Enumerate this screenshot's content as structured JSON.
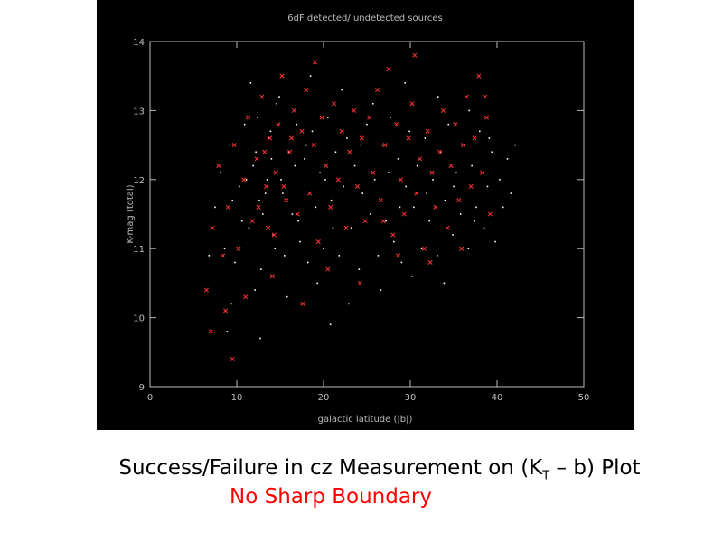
{
  "slide": {
    "caption_prefix": "Success/Failure in cz Measurement on (K",
    "caption_sub": "T",
    "caption_suffix": " – b) Plot",
    "subcaption": "No Sharp Boundary",
    "subcaption_color": "#ff0000"
  },
  "chart_data": {
    "type": "scatter",
    "title": "6dF detected/ undetected sources",
    "xlabel": "galactic latitude (|b|)",
    "ylabel": "K-mag (total)",
    "xlim": [
      0,
      50
    ],
    "ylim": [
      9,
      14
    ],
    "x_ticks": [
      0,
      10,
      20,
      30,
      40,
      50
    ],
    "y_ticks": [
      9,
      10,
      11,
      12,
      13,
      14
    ],
    "x_tick_labels": [
      "0",
      "10",
      "20",
      "30",
      "40",
      "50"
    ],
    "y_tick_labels": [
      "9",
      "10",
      "11",
      "12",
      "13",
      "14"
    ],
    "background": "#000000",
    "axis_color": "#bbbbbb",
    "series": [
      {
        "marker": "dot",
        "color": "#ffffff",
        "values": [
          [
            6.8,
            10.9
          ],
          [
            7.5,
            11.6
          ],
          [
            8.1,
            12.1
          ],
          [
            8.6,
            11.0
          ],
          [
            9.2,
            12.5
          ],
          [
            9.8,
            10.8
          ],
          [
            10.3,
            11.9
          ],
          [
            10.9,
            12.8
          ],
          [
            11.4,
            11.3
          ],
          [
            11.9,
            12.2
          ],
          [
            12.4,
            12.9
          ],
          [
            12.8,
            10.7
          ],
          [
            13.3,
            11.8
          ],
          [
            13.7,
            12.6
          ],
          [
            14.2,
            11.2
          ],
          [
            14.6,
            13.1
          ],
          [
            15.1,
            12.0
          ],
          [
            15.5,
            10.9
          ],
          [
            16.0,
            12.4
          ],
          [
            16.4,
            11.5
          ],
          [
            16.9,
            12.8
          ],
          [
            17.3,
            11.1
          ],
          [
            17.8,
            12.3
          ],
          [
            18.2,
            10.8
          ],
          [
            18.7,
            12.7
          ],
          [
            19.1,
            11.6
          ],
          [
            19.6,
            12.1
          ],
          [
            20.0,
            11.0
          ],
          [
            20.5,
            12.9
          ],
          [
            20.9,
            11.7
          ],
          [
            21.4,
            12.4
          ],
          [
            21.8,
            10.9
          ],
          [
            22.3,
            11.9
          ],
          [
            22.7,
            12.6
          ],
          [
            23.2,
            11.3
          ],
          [
            23.6,
            12.2
          ],
          [
            24.1,
            10.7
          ],
          [
            24.5,
            11.8
          ],
          [
            25.0,
            12.8
          ],
          [
            25.4,
            11.5
          ],
          [
            25.9,
            12.0
          ],
          [
            26.3,
            10.9
          ],
          [
            26.8,
            12.5
          ],
          [
            27.2,
            11.4
          ],
          [
            27.7,
            12.9
          ],
          [
            28.1,
            11.1
          ],
          [
            28.6,
            12.3
          ],
          [
            29.0,
            10.8
          ],
          [
            29.5,
            11.9
          ],
          [
            29.9,
            12.7
          ],
          [
            30.4,
            11.6
          ],
          [
            30.8,
            12.2
          ],
          [
            31.3,
            11.0
          ],
          [
            31.7,
            12.6
          ],
          [
            32.2,
            11.4
          ],
          [
            32.6,
            12.0
          ],
          [
            33.1,
            10.9
          ],
          [
            33.5,
            12.4
          ],
          [
            34.0,
            11.7
          ],
          [
            34.4,
            12.8
          ],
          [
            34.9,
            11.2
          ],
          [
            35.3,
            12.1
          ],
          [
            35.8,
            11.5
          ],
          [
            36.2,
            12.5
          ],
          [
            36.7,
            11.0
          ],
          [
            37.1,
            12.2
          ],
          [
            37.6,
            11.6
          ],
          [
            38.0,
            12.7
          ],
          [
            38.5,
            11.3
          ],
          [
            38.9,
            11.9
          ],
          [
            39.4,
            12.4
          ],
          [
            39.8,
            11.1
          ],
          [
            40.3,
            12.0
          ],
          [
            40.7,
            11.6
          ],
          [
            41.2,
            12.3
          ],
          [
            41.6,
            11.8
          ],
          [
            42.1,
            12.5
          ],
          [
            9.4,
            10.2
          ],
          [
            12.1,
            10.4
          ],
          [
            15.8,
            10.3
          ],
          [
            19.3,
            10.5
          ],
          [
            22.9,
            10.2
          ],
          [
            26.6,
            10.4
          ],
          [
            30.2,
            10.6
          ],
          [
            33.9,
            10.5
          ],
          [
            11.6,
            13.4
          ],
          [
            14.9,
            13.2
          ],
          [
            18.5,
            13.5
          ],
          [
            22.1,
            13.3
          ],
          [
            25.7,
            13.1
          ],
          [
            29.4,
            13.4
          ],
          [
            33.2,
            13.2
          ],
          [
            36.8,
            13.0
          ],
          [
            8.9,
            9.8
          ],
          [
            12.7,
            9.7
          ],
          [
            20.8,
            9.9
          ],
          [
            13.5,
            12.0
          ],
          [
            13.0,
            11.5
          ],
          [
            14.0,
            12.3
          ],
          [
            12.6,
            11.7
          ],
          [
            14.4,
            11.0
          ],
          [
            15.3,
            11.8
          ],
          [
            16.7,
            12.2
          ],
          [
            17.1,
            11.4
          ],
          [
            18.0,
            12.5
          ],
          [
            13.9,
            12.7
          ],
          [
            12.2,
            12.4
          ],
          [
            11.1,
            12.0
          ],
          [
            10.6,
            11.4
          ],
          [
            9.5,
            11.7
          ],
          [
            20.2,
            12.0
          ],
          [
            21.1,
            11.3
          ],
          [
            24.3,
            12.5
          ],
          [
            27.5,
            12.1
          ],
          [
            28.8,
            11.6
          ],
          [
            31.9,
            11.8
          ],
          [
            35.0,
            11.9
          ],
          [
            37.4,
            11.4
          ],
          [
            39.1,
            12.6
          ]
        ]
      },
      {
        "marker": "x",
        "color": "#ff3333",
        "values": [
          [
            6.5,
            10.4
          ],
          [
            7.2,
            11.3
          ],
          [
            7.9,
            12.2
          ],
          [
            8.4,
            10.9
          ],
          [
            9.0,
            11.6
          ],
          [
            9.7,
            12.5
          ],
          [
            10.2,
            11.0
          ],
          [
            10.8,
            12.0
          ],
          [
            11.3,
            12.9
          ],
          [
            11.8,
            11.4
          ],
          [
            12.3,
            12.3
          ],
          [
            12.9,
            13.2
          ],
          [
            13.4,
            11.9
          ],
          [
            13.8,
            12.6
          ],
          [
            14.3,
            11.2
          ],
          [
            14.8,
            12.8
          ],
          [
            15.2,
            13.5
          ],
          [
            15.7,
            11.7
          ],
          [
            16.1,
            12.4
          ],
          [
            16.6,
            13.0
          ],
          [
            17.0,
            11.5
          ],
          [
            17.5,
            12.7
          ],
          [
            18.0,
            13.3
          ],
          [
            18.4,
            11.8
          ],
          [
            18.9,
            12.5
          ],
          [
            19.4,
            11.1
          ],
          [
            19.8,
            12.9
          ],
          [
            20.3,
            12.2
          ],
          [
            20.8,
            11.6
          ],
          [
            21.2,
            13.1
          ],
          [
            21.7,
            12.0
          ],
          [
            22.1,
            12.7
          ],
          [
            22.6,
            11.3
          ],
          [
            23.0,
            12.4
          ],
          [
            23.5,
            13.0
          ],
          [
            23.9,
            11.9
          ],
          [
            24.4,
            12.6
          ],
          [
            24.8,
            11.4
          ],
          [
            25.3,
            12.9
          ],
          [
            25.7,
            12.1
          ],
          [
            26.2,
            13.3
          ],
          [
            26.6,
            11.7
          ],
          [
            27.1,
            12.5
          ],
          [
            27.5,
            13.6
          ],
          [
            28.0,
            11.2
          ],
          [
            28.4,
            12.8
          ],
          [
            28.9,
            12.0
          ],
          [
            29.3,
            11.5
          ],
          [
            29.8,
            12.6
          ],
          [
            30.2,
            13.1
          ],
          [
            30.7,
            11.8
          ],
          [
            31.1,
            12.3
          ],
          [
            31.6,
            11.0
          ],
          [
            32.0,
            12.7
          ],
          [
            32.5,
            12.1
          ],
          [
            32.9,
            11.6
          ],
          [
            33.4,
            12.4
          ],
          [
            33.8,
            13.0
          ],
          [
            34.3,
            11.3
          ],
          [
            34.7,
            12.2
          ],
          [
            35.2,
            12.8
          ],
          [
            35.6,
            11.7
          ],
          [
            36.1,
            12.5
          ],
          [
            36.5,
            13.2
          ],
          [
            37.0,
            11.9
          ],
          [
            37.4,
            12.6
          ],
          [
            37.9,
            13.5
          ],
          [
            38.3,
            12.1
          ],
          [
            38.8,
            12.9
          ],
          [
            39.2,
            11.5
          ],
          [
            8.7,
            10.1
          ],
          [
            11.0,
            10.3
          ],
          [
            14.1,
            10.6
          ],
          [
            17.6,
            10.2
          ],
          [
            20.5,
            10.7
          ],
          [
            24.2,
            10.5
          ],
          [
            28.6,
            10.9
          ],
          [
            32.3,
            10.8
          ],
          [
            14.5,
            12.1
          ],
          [
            13.2,
            12.4
          ],
          [
            15.4,
            11.9
          ],
          [
            12.5,
            11.6
          ],
          [
            16.3,
            12.6
          ],
          [
            13.6,
            11.3
          ],
          [
            9.5,
            9.4
          ],
          [
            7.0,
            9.8
          ],
          [
            30.5,
            13.8
          ],
          [
            19.0,
            13.7
          ],
          [
            35.9,
            11.0
          ],
          [
            38.6,
            13.2
          ],
          [
            26.9,
            11.4
          ]
        ]
      }
    ]
  }
}
